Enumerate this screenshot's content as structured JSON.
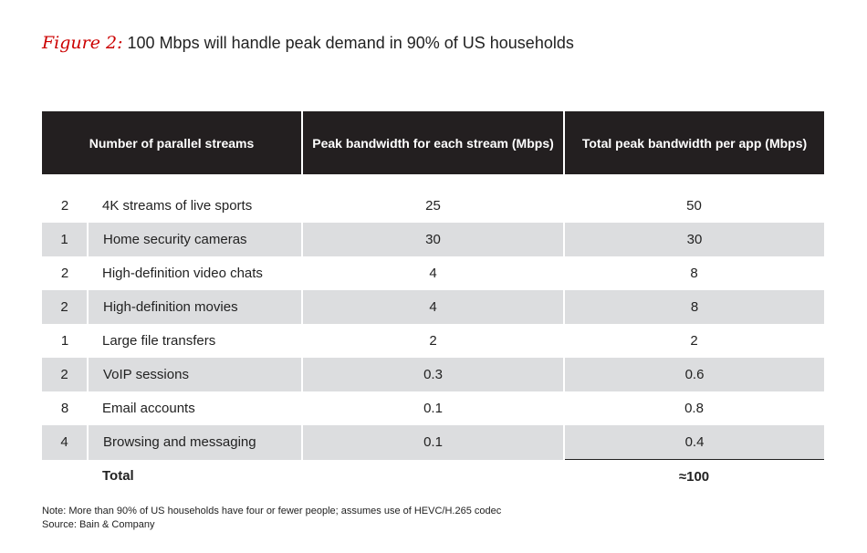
{
  "figure": {
    "label": "Figure 2:",
    "title": "100 Mbps will handle peak demand in 90% of US households"
  },
  "chart_data": {
    "type": "table",
    "columns": [
      "Number of parallel streams",
      "Peak bandwidth for each stream (Mbps)",
      "Total peak bandwidth per app (Mbps)"
    ],
    "rows": [
      {
        "count": "2",
        "app": "4K streams of live sports",
        "peak": "25",
        "total": "50"
      },
      {
        "count": "1",
        "app": "Home security cameras",
        "peak": "30",
        "total": "30"
      },
      {
        "count": "2",
        "app": "High-definition video chats",
        "peak": "4",
        "total": "8"
      },
      {
        "count": "2",
        "app": "High-definition movies",
        "peak": "4",
        "total": "8"
      },
      {
        "count": "1",
        "app": "Large file transfers",
        "peak": "2",
        "total": "2"
      },
      {
        "count": "2",
        "app": "VoIP sessions",
        "peak": "0.3",
        "total": "0.6"
      },
      {
        "count": "8",
        "app": "Email accounts",
        "peak": "0.1",
        "total": "0.8"
      },
      {
        "count": "4",
        "app": "Browsing and messaging",
        "peak": "0.1",
        "total": "0.4"
      }
    ],
    "total": {
      "label": "Total",
      "value": "≈100"
    }
  },
  "footer": {
    "note": "Note: More than 90% of US households have four or fewer people; assumes use of HEVC/H.265 codec",
    "source": "Source: Bain & Company"
  },
  "colors": {
    "accent": "#cc0000",
    "header_bg": "#231f20",
    "row_shade": "#dcdddf"
  }
}
